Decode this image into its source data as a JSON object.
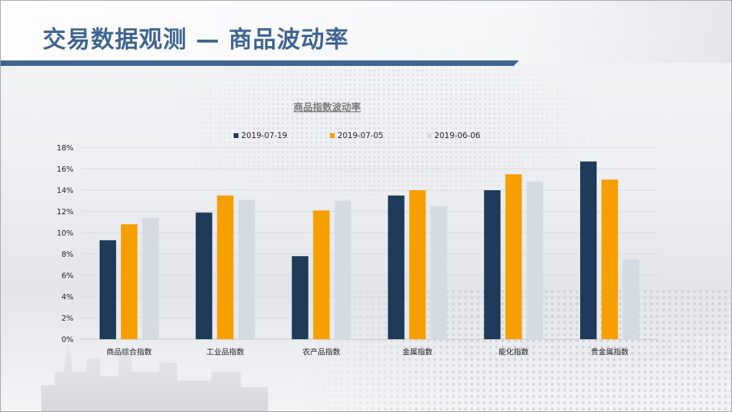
{
  "slide": {
    "title": "交易数据观测 — 商品波动率"
  },
  "chart_data": {
    "type": "bar",
    "title": "商品指数波动率",
    "categories": [
      "商品综合指数",
      "工业品指数",
      "农产品指数",
      "金属指数",
      "能化指数",
      "贵金属指数"
    ],
    "series": [
      {
        "name": "2019-07-19",
        "color": "#203a5a",
        "values": [
          9.3,
          11.9,
          7.8,
          13.5,
          14.0,
          16.7
        ]
      },
      {
        "name": "2019-07-05",
        "color": "#f5a000",
        "values": [
          10.8,
          13.5,
          12.1,
          14.0,
          15.5,
          15.0
        ]
      },
      {
        "name": "2019-06-06",
        "color": "#d5dbe2",
        "values": [
          11.4,
          13.1,
          13.0,
          12.5,
          14.8,
          7.5
        ]
      }
    ],
    "y_ticks": [
      "0%",
      "2%",
      "4%",
      "6%",
      "8%",
      "10%",
      "12%",
      "14%",
      "16%",
      "18%"
    ],
    "ylim": [
      0,
      18
    ],
    "grid": true,
    "legend": "top"
  }
}
